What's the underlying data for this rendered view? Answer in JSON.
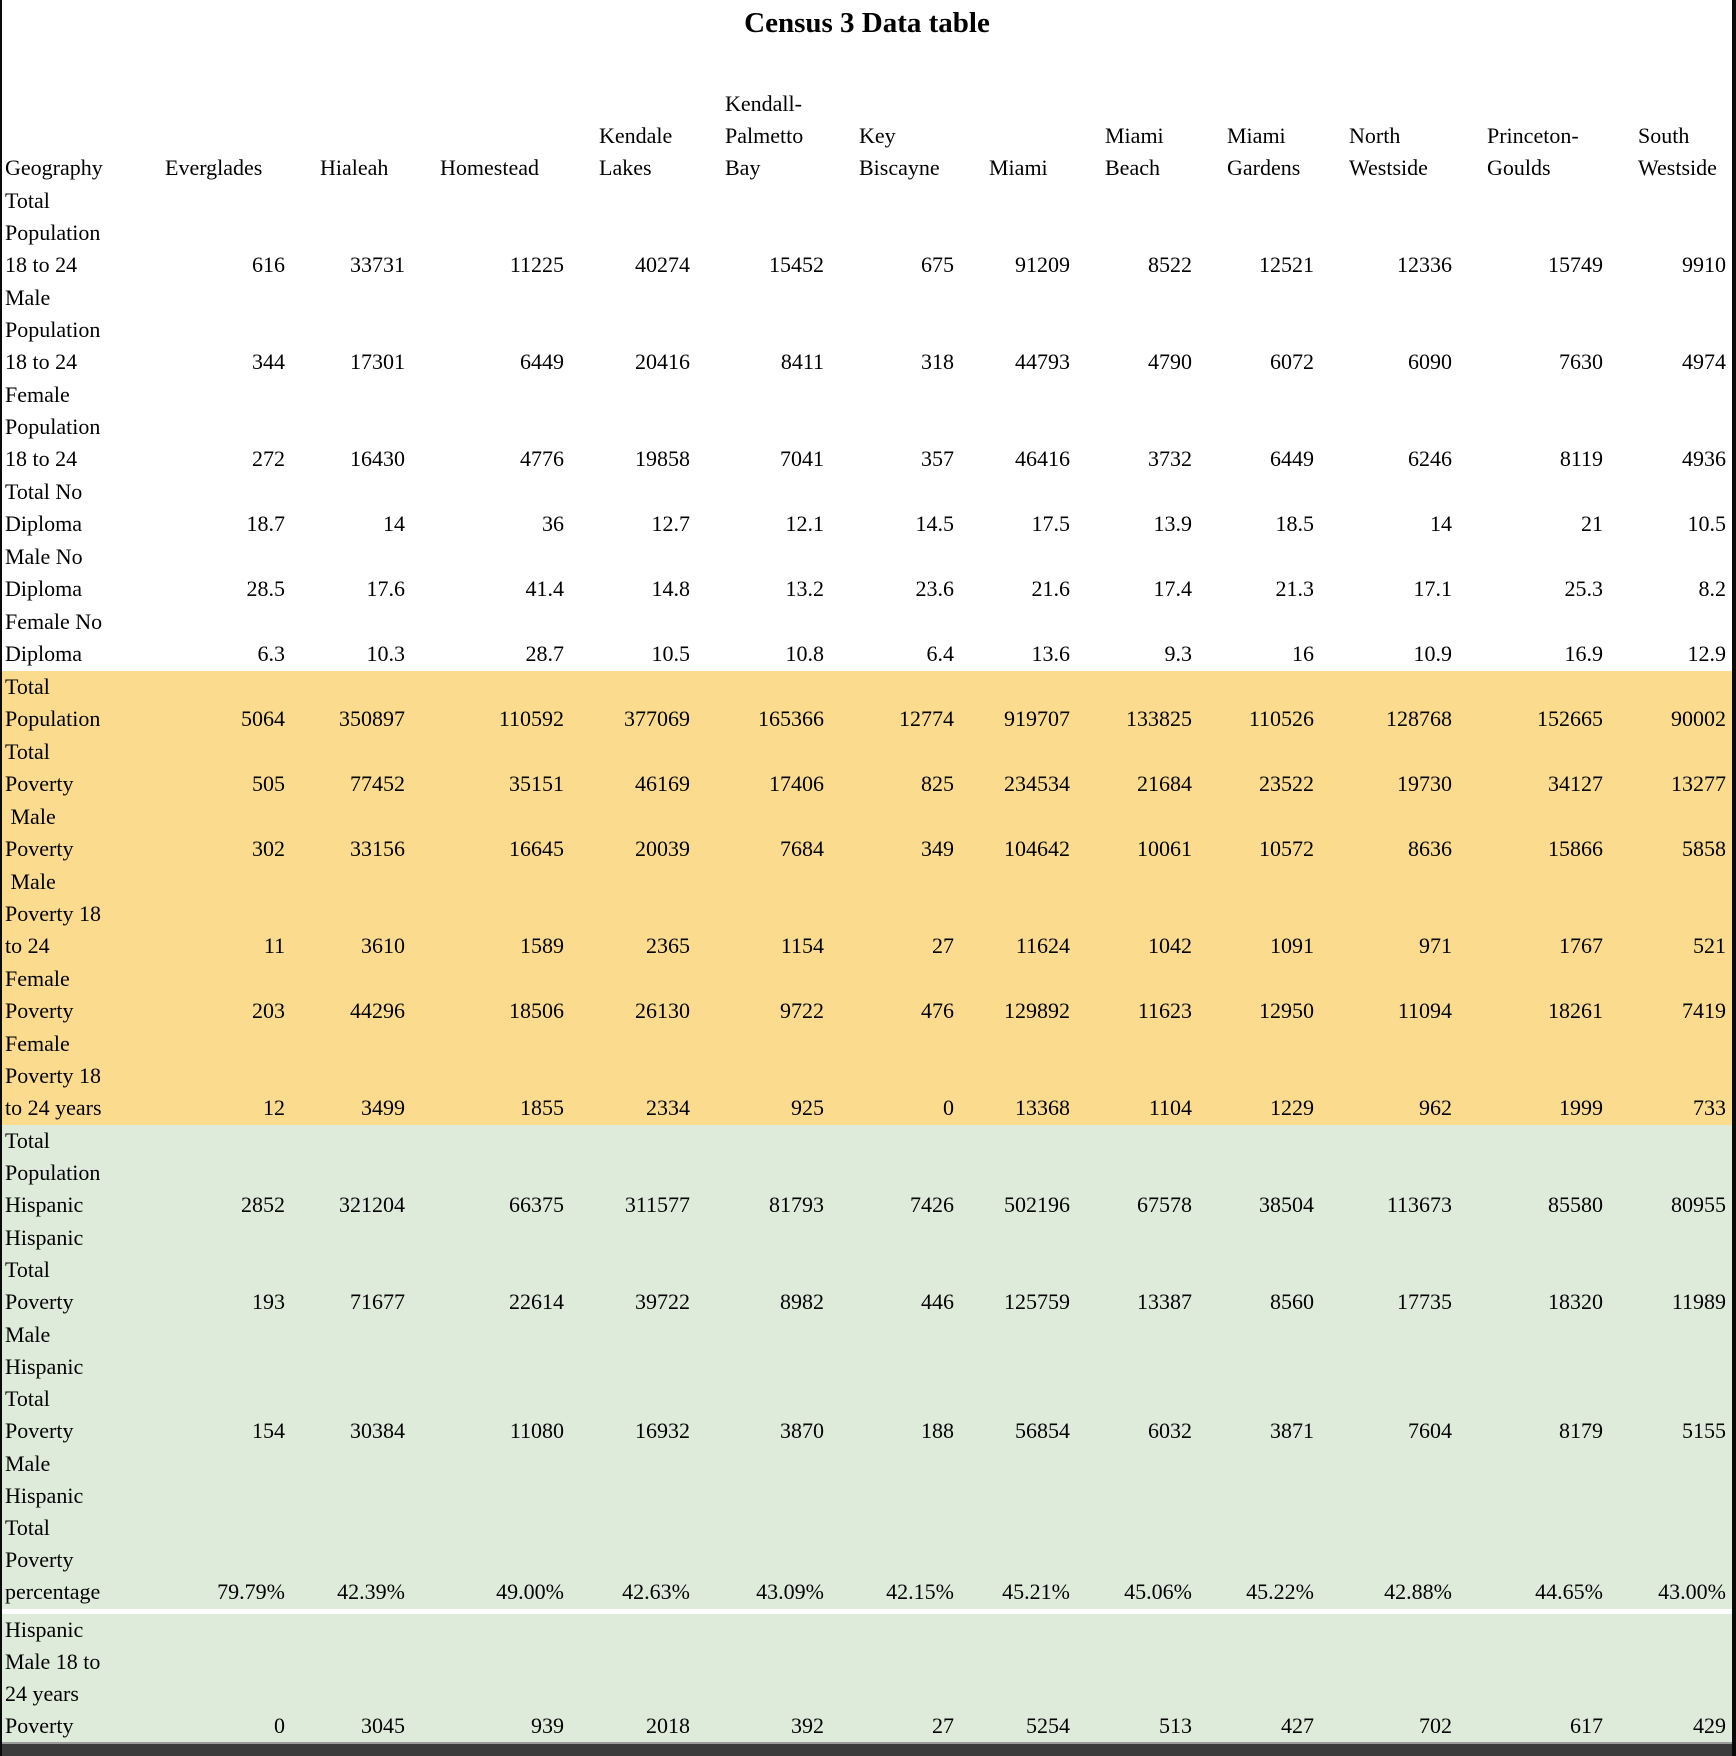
{
  "title": "Census 3 Data table",
  "colors": {
    "section_poverty_bg": "#FBDC8F",
    "section_hispanic_bg": "#DFEBDA",
    "bottom_bar": "#3B3B3B",
    "border": "#0A0A0A"
  },
  "chart_data": {
    "type": "table",
    "title": "Census 3 Data table",
    "geography_header": "Geography",
    "columns": [
      "Everglades",
      "Hialeah",
      "Homestead",
      "Kendale\nLakes",
      "Kendall-\nPalmetto\nBay",
      "Key\nBiscayne",
      "Miami",
      "Miami\nBeach",
      "Miami\nGardens",
      "North\nWestside",
      "Princeton-\nGoulds",
      "South\nWestside"
    ],
    "rows": [
      {
        "label": "Total\nPopulation\n18 to 24",
        "section": "white",
        "values": [
          "616",
          "33731",
          "11225",
          "40274",
          "15452",
          "675",
          "91209",
          "8522",
          "12521",
          "12336",
          "15749",
          "9910"
        ]
      },
      {
        "label": "Male\nPopulation\n18 to 24",
        "section": "white",
        "values": [
          "344",
          "17301",
          "6449",
          "20416",
          "8411",
          "318",
          "44793",
          "4790",
          "6072",
          "6090",
          "7630",
          "4974"
        ]
      },
      {
        "label": "Female\nPopulation\n18 to 24",
        "section": "white",
        "values": [
          "272",
          "16430",
          "4776",
          "19858",
          "7041",
          "357",
          "46416",
          "3732",
          "6449",
          "6246",
          "8119",
          "4936"
        ]
      },
      {
        "label": "Total No\nDiploma",
        "section": "white",
        "values": [
          "18.7",
          "14",
          "36",
          "12.7",
          "12.1",
          "14.5",
          "17.5",
          "13.9",
          "18.5",
          "14",
          "21",
          "10.5"
        ]
      },
      {
        "label": "Male No\nDiploma",
        "section": "white",
        "values": [
          "28.5",
          "17.6",
          "41.4",
          "14.8",
          "13.2",
          "23.6",
          "21.6",
          "17.4",
          "21.3",
          "17.1",
          "25.3",
          "8.2"
        ]
      },
      {
        "label": "Female No\nDiploma",
        "section": "white",
        "values": [
          "6.3",
          "10.3",
          "28.7",
          "10.5",
          "10.8",
          "6.4",
          "13.6",
          "9.3",
          "16",
          "10.9",
          "16.9",
          "12.9"
        ]
      },
      {
        "label": "Total\nPopulation",
        "section": "yellow",
        "values": [
          "5064",
          "350897",
          "110592",
          "377069",
          "165366",
          "12774",
          "919707",
          "133825",
          "110526",
          "128768",
          "152665",
          "90002"
        ]
      },
      {
        "label": "Total\nPoverty",
        "section": "yellow",
        "values": [
          "505",
          "77452",
          "35151",
          "46169",
          "17406",
          "825",
          "234534",
          "21684",
          "23522",
          "19730",
          "34127",
          "13277"
        ]
      },
      {
        "label": " Male\nPoverty",
        "section": "yellow",
        "values": [
          "302",
          "33156",
          "16645",
          "20039",
          "7684",
          "349",
          "104642",
          "10061",
          "10572",
          "8636",
          "15866",
          "5858"
        ]
      },
      {
        "label": " Male\nPoverty 18\nto 24",
        "section": "yellow",
        "values": [
          "11",
          "3610",
          "1589",
          "2365",
          "1154",
          "27",
          "11624",
          "1042",
          "1091",
          "971",
          "1767",
          "521"
        ]
      },
      {
        "label": "Female\nPoverty",
        "section": "yellow",
        "values": [
          "203",
          "44296",
          "18506",
          "26130",
          "9722",
          "476",
          "129892",
          "11623",
          "12950",
          "11094",
          "18261",
          "7419"
        ]
      },
      {
        "label": "Female\nPoverty 18\nto 24 years",
        "section": "yellow",
        "values": [
          "12",
          "3499",
          "1855",
          "2334",
          "925",
          "0",
          "13368",
          "1104",
          "1229",
          "962",
          "1999",
          "733"
        ]
      },
      {
        "label": "Total\nPopulation\nHispanic",
        "section": "green",
        "values": [
          "2852",
          "321204",
          "66375",
          "311577",
          "81793",
          "7426",
          "502196",
          "67578",
          "38504",
          "113673",
          "85580",
          "80955"
        ]
      },
      {
        "label": "Hispanic\nTotal\nPoverty",
        "section": "green",
        "values": [
          "193",
          "71677",
          "22614",
          "39722",
          "8982",
          "446",
          "125759",
          "13387",
          "8560",
          "17735",
          "18320",
          "11989"
        ]
      },
      {
        "label": "Male\nHispanic\nTotal\nPoverty",
        "section": "green",
        "values": [
          "154",
          "30384",
          "11080",
          "16932",
          "3870",
          "188",
          "56854",
          "6032",
          "3871",
          "7604",
          "8179",
          "5155"
        ]
      },
      {
        "label": "Male\nHispanic\nTotal\nPoverty\npercentage",
        "section": "green",
        "separator_after": true,
        "values": [
          "79.79%",
          "42.39%",
          "49.00%",
          "42.63%",
          "43.09%",
          "42.15%",
          "45.21%",
          "45.06%",
          "45.22%",
          "42.88%",
          "44.65%",
          "43.00%"
        ]
      },
      {
        "label": "Hispanic\nMale 18 to\n24 years\nPoverty",
        "section": "green",
        "values": [
          "0",
          "3045",
          "939",
          "2018",
          "392",
          "27",
          "5254",
          "513",
          "427",
          "702",
          "617",
          "429"
        ]
      }
    ]
  }
}
